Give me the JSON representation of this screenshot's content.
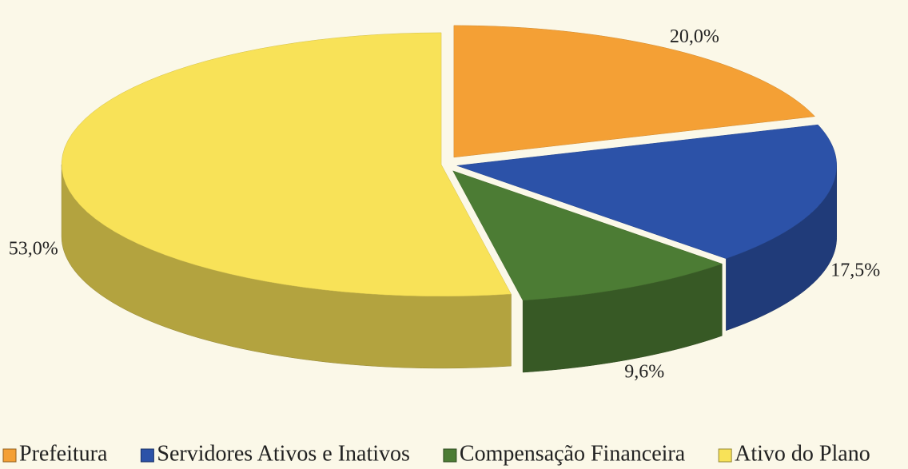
{
  "chart_data": {
    "type": "pie",
    "categories": [
      "Prefeitura",
      "Servidores Ativos e Inativos",
      "Compensação Financeira",
      "Ativo do Plano"
    ],
    "values": [
      20.0,
      17.5,
      9.6,
      53.0
    ],
    "value_labels": [
      "20,0%",
      "17,5%",
      "9,6%",
      "53,0%"
    ],
    "colors": [
      "#f4a035",
      "#2c52a8",
      "#4c7c34",
      "#f8e258"
    ],
    "legend": "bottom"
  }
}
